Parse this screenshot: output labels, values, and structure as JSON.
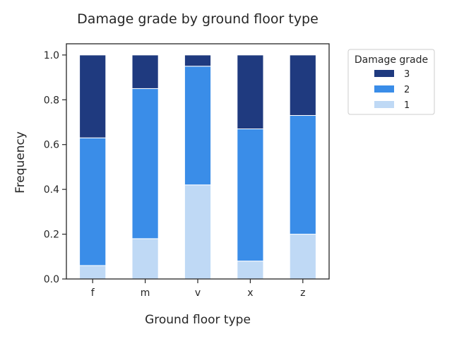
{
  "chart_data": {
    "type": "bar",
    "stacked": true,
    "title": "Damage grade by ground floor type",
    "xlabel": "Ground floor type",
    "ylabel": "Frequency",
    "categories": [
      "f",
      "m",
      "v",
      "x",
      "z"
    ],
    "series": [
      {
        "name": "1",
        "color": "#bfd9f5",
        "values": [
          0.06,
          0.18,
          0.42,
          0.08,
          0.2
        ]
      },
      {
        "name": "2",
        "color": "#3a8de8",
        "values": [
          0.57,
          0.67,
          0.53,
          0.59,
          0.53
        ]
      },
      {
        "name": "3",
        "color": "#1f3a7f",
        "values": [
          0.37,
          0.15,
          0.05,
          0.33,
          0.27
        ]
      }
    ],
    "ylim": [
      0,
      1.05
    ],
    "yticks": [
      "0.0",
      "0.2",
      "0.4",
      "0.6",
      "0.8",
      "1.0"
    ],
    "grid": false,
    "legend": {
      "title": "Damage grade",
      "placement": "outside-right-top",
      "order": [
        "3",
        "2",
        "1"
      ]
    }
  }
}
